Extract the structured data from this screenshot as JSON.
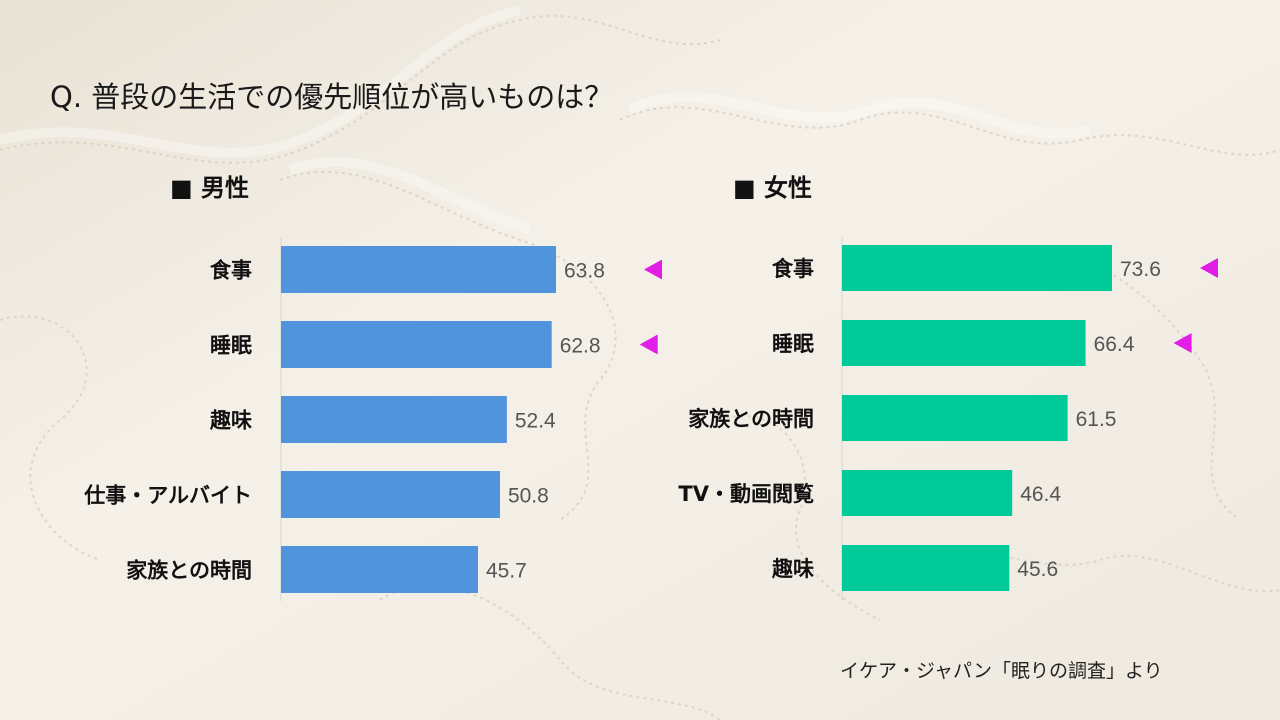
{
  "title": "Q. 普段の生活での優先順位が高いものは？",
  "source": "イケア・ジャパン「眠りの調査」より",
  "colors": {
    "male_bar": "#4f94dc",
    "female_bar": "#00c99a",
    "marker": "#e21ee6"
  },
  "chart_data": [
    {
      "type": "bar",
      "orientation": "horizontal",
      "title": "■ 男性",
      "categories": [
        "食事",
        "睡眠",
        "趣味",
        "仕事・アルバイト",
        "家族との時間"
      ],
      "values": [
        63.8,
        62.8,
        52.4,
        50.8,
        45.7
      ],
      "markers": [
        true,
        true,
        false,
        false,
        false
      ]
    },
    {
      "type": "bar",
      "orientation": "horizontal",
      "title": "■ 女性",
      "categories": [
        "食事",
        "睡眠",
        "家族との時間",
        "TV・動画閲覧",
        "趣味"
      ],
      "values": [
        73.6,
        66.4,
        61.5,
        46.4,
        45.6
      ],
      "markers": [
        true,
        true,
        false,
        false,
        false
      ]
    }
  ]
}
